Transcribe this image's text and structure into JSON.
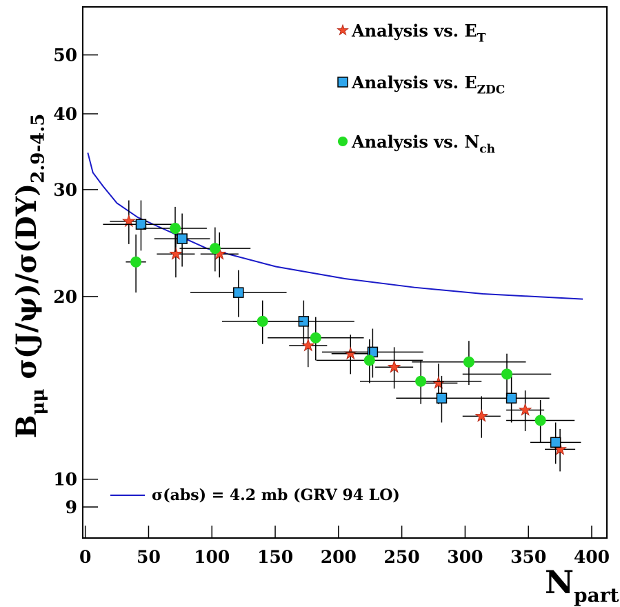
{
  "chart_data": {
    "type": "scatter",
    "ylabel": [
      "B",
      "μμ",
      " σ(J/ψ)/σ(DY)",
      "2.9-4.5"
    ],
    "xlabel": [
      "N",
      "part"
    ],
    "xlim": [
      -2,
      412
    ],
    "ylim": [
      8,
      60
    ],
    "log_y": true,
    "xticks": [
      0,
      50,
      100,
      150,
      200,
      250,
      300,
      350,
      400
    ],
    "yticks": [
      9,
      10,
      20,
      30,
      40,
      50
    ],
    "series": [
      {
        "name": [
          "Analysis vs. E",
          "T"
        ],
        "marker": "star",
        "color": "#f04a2a",
        "x": [
          34.4,
          71.5,
          106,
          176,
          209.5,
          244,
          279,
          313,
          347.5,
          375
        ],
        "values": [
          26.6,
          23.5,
          23.5,
          16.6,
          16.1,
          15.3,
          14.4,
          12.7,
          13.0,
          11.2
        ],
        "x_errors": [
          15,
          15,
          15,
          15,
          15,
          15,
          15,
          15,
          15,
          12
        ],
        "errors": [
          2.2,
          2.0,
          2.0,
          1.3,
          1.2,
          1.2,
          1.1,
          1.0,
          1.0,
          0.9
        ]
      },
      {
        "name": [
          "Analysis vs. E",
          "ZDC"
        ],
        "marker": "square",
        "color": "#2fa6ec",
        "x": [
          44,
          76.5,
          121,
          172.5,
          227,
          281.5,
          336.6,
          371.5
        ],
        "values": [
          26.3,
          24.9,
          20.3,
          18.2,
          16.2,
          13.6,
          13.6,
          11.5
        ],
        "x_errors": [
          30,
          22,
          38,
          40,
          40,
          36,
          30,
          20
        ],
        "errors": [
          2.5,
          2.5,
          1.8,
          1.5,
          1.5,
          1.2,
          1.2,
          0.9
        ]
      },
      {
        "name": [
          "Analysis vs. N",
          "ch"
        ],
        "marker": "circle",
        "color": "#22dd22",
        "x": [
          40,
          71,
          102.5,
          140,
          182,
          224.5,
          265,
          303,
          333,
          359.5
        ],
        "values": [
          22.8,
          25.9,
          24.0,
          18.2,
          17.1,
          15.7,
          14.5,
          15.6,
          14.9,
          12.5
        ],
        "x_errors": [
          8,
          25,
          28,
          32,
          38,
          42,
          48,
          45,
          35,
          27
        ],
        "errors": [
          2.5,
          2.2,
          2.0,
          1.5,
          1.4,
          1.3,
          1.2,
          1.3,
          1.2,
          1.0
        ]
      }
    ],
    "curve": {
      "name": "σ(abs) = 4.2 mb (GRV 94 LO)",
      "color": "#1a1ac8",
      "x": [
        2,
        6,
        14,
        25,
        41.5,
        96,
        150.5,
        205,
        260,
        314,
        393
      ],
      "values": [
        34.5,
        32.0,
        30.4,
        28.5,
        27.0,
        24.0,
        22.4,
        21.4,
        20.7,
        20.2,
        19.8
      ]
    }
  }
}
